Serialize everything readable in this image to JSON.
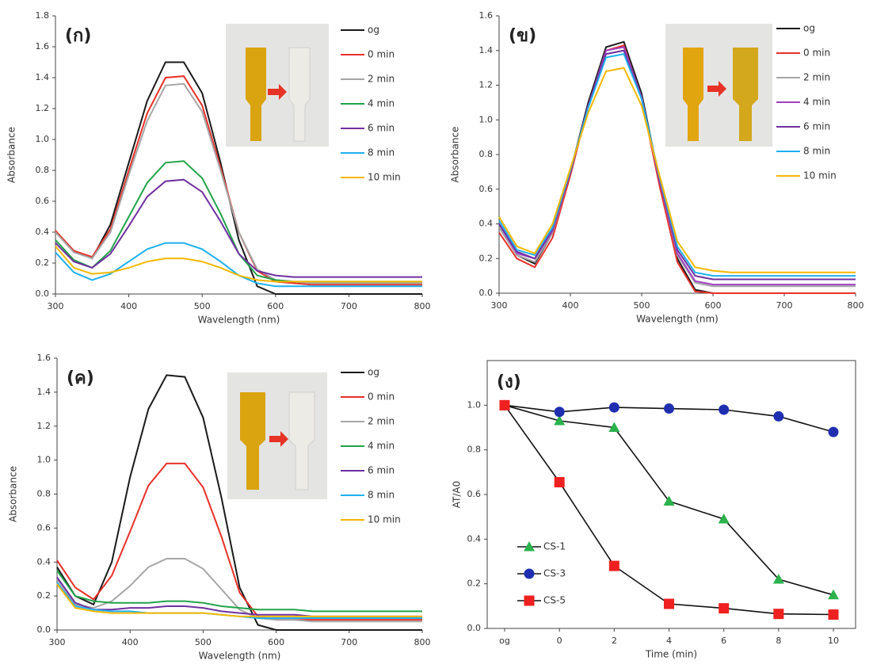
{
  "chart_data": [
    {
      "type": "line",
      "label": "(ก)",
      "x_label": "Wavelength (nm)",
      "y_label": "Absorbance",
      "x": [
        300,
        325,
        350,
        375,
        400,
        425,
        450,
        475,
        500,
        525,
        550,
        575,
        600,
        625,
        650,
        675,
        700,
        725,
        750,
        775,
        800
      ],
      "xlim": [
        300,
        800
      ],
      "xticks": [
        300,
        400,
        500,
        600,
        700,
        800
      ],
      "ylim": [
        0,
        1.8
      ],
      "yticks": [
        {
          "value": 0,
          "label": "0.0"
        },
        0.2,
        0.4,
        0.6,
        0.8,
        {
          "value": 1,
          "label": "1.0"
        },
        1.2,
        1.4,
        1.6,
        1.8
      ],
      "series": [
        {
          "name": "og",
          "color": "#1a1a1a",
          "values": [
            0.4,
            0.28,
            0.23,
            0.45,
            0.85,
            1.25,
            1.5,
            1.5,
            1.3,
            0.85,
            0.35,
            0.05,
            0,
            0,
            0,
            0,
            0,
            0,
            0,
            0,
            0
          ]
        },
        {
          "name": "0 min",
          "color": "#e8302a",
          "values": [
            0.41,
            0.28,
            0.24,
            0.42,
            0.8,
            1.17,
            1.4,
            1.41,
            1.22,
            0.82,
            0.4,
            0.15,
            0.08,
            0.07,
            0.06,
            0.06,
            0.06,
            0.06,
            0.06,
            0.06,
            0.06
          ]
        },
        {
          "name": "2 min",
          "color": "#a6a6a6",
          "values": [
            0.4,
            0.27,
            0.23,
            0.4,
            0.77,
            1.12,
            1.35,
            1.36,
            1.18,
            0.8,
            0.4,
            0.16,
            0.09,
            0.08,
            0.07,
            0.07,
            0.07,
            0.07,
            0.07,
            0.07,
            0.07
          ]
        },
        {
          "name": "4 min",
          "color": "#22a34a",
          "values": [
            0.35,
            0.22,
            0.17,
            0.28,
            0.5,
            0.72,
            0.85,
            0.86,
            0.75,
            0.52,
            0.26,
            0.12,
            0.09,
            0.08,
            0.08,
            0.08,
            0.08,
            0.08,
            0.08,
            0.08,
            0.08
          ]
        },
        {
          "name": "6 min",
          "color": "#7030a0",
          "values": [
            0.33,
            0.21,
            0.17,
            0.26,
            0.44,
            0.63,
            0.73,
            0.74,
            0.66,
            0.47,
            0.26,
            0.15,
            0.12,
            0.11,
            0.11,
            0.11,
            0.11,
            0.11,
            0.11,
            0.11,
            0.11
          ]
        },
        {
          "name": "8 min",
          "color": "#1fb0f0",
          "values": [
            0.27,
            0.14,
            0.09,
            0.13,
            0.21,
            0.29,
            0.33,
            0.33,
            0.29,
            0.21,
            0.12,
            0.07,
            0.05,
            0.05,
            0.05,
            0.05,
            0.05,
            0.05,
            0.05,
            0.05,
            0.05
          ]
        },
        {
          "name": "10 min",
          "color": "#f5b800",
          "values": [
            0.31,
            0.17,
            0.13,
            0.14,
            0.17,
            0.21,
            0.23,
            0.23,
            0.21,
            0.17,
            0.12,
            0.09,
            0.08,
            0.08,
            0.08,
            0.08,
            0.08,
            0.08,
            0.08,
            0.08,
            0.08
          ]
        }
      ]
    },
    {
      "type": "line",
      "label": "(ข)",
      "x_label": "Wavelength (nm)",
      "y_label": "Absorbance",
      "x": [
        300,
        325,
        350,
        375,
        400,
        425,
        450,
        475,
        500,
        525,
        550,
        575,
        600,
        625,
        650,
        675,
        700,
        725,
        750,
        775,
        800
      ],
      "xlim": [
        300,
        800
      ],
      "xticks": [
        300,
        400,
        500,
        600,
        700,
        800
      ],
      "ylim": [
        0,
        1.6
      ],
      "yticks": [
        {
          "value": 0,
          "label": "0.0"
        },
        0.2,
        0.4,
        0.6,
        0.8,
        {
          "value": 1,
          "label": "1.0"
        },
        1.2,
        1.4,
        1.6
      ],
      "series": [
        {
          "name": "og",
          "color": "#1a1a1a",
          "values": [
            0.38,
            0.22,
            0.17,
            0.35,
            0.7,
            1.1,
            1.42,
            1.45,
            1.15,
            0.65,
            0.2,
            0.02,
            0,
            0,
            0,
            0,
            0,
            0,
            0,
            0,
            0
          ]
        },
        {
          "name": "0 min",
          "color": "#e8302a",
          "values": [
            0.35,
            0.2,
            0.15,
            0.32,
            0.68,
            1.08,
            1.4,
            1.43,
            1.12,
            0.62,
            0.18,
            0.01,
            0,
            0,
            0,
            0,
            0,
            0,
            0,
            0,
            0
          ]
        },
        {
          "name": "2 min",
          "color": "#a6a6a6",
          "values": [
            0.38,
            0.22,
            0.18,
            0.35,
            0.7,
            1.08,
            1.38,
            1.4,
            1.12,
            0.65,
            0.22,
            0.06,
            0.04,
            0.04,
            0.04,
            0.04,
            0.04,
            0.04,
            0.04,
            0.04,
            0.04
          ]
        },
        {
          "name": "4 min",
          "color": "#a040c0",
          "values": [
            0.4,
            0.23,
            0.2,
            0.36,
            0.7,
            1.08,
            1.4,
            1.42,
            1.13,
            0.65,
            0.23,
            0.07,
            0.05,
            0.05,
            0.05,
            0.05,
            0.05,
            0.05,
            0.05,
            0.05,
            0.05
          ]
        },
        {
          "name": "6 min",
          "color": "#7030a0",
          "values": [
            0.4,
            0.24,
            0.2,
            0.37,
            0.7,
            1.08,
            1.38,
            1.4,
            1.12,
            0.66,
            0.25,
            0.1,
            0.08,
            0.08,
            0.08,
            0.08,
            0.08,
            0.08,
            0.08,
            0.08,
            0.08
          ]
        },
        {
          "name": "8 min",
          "color": "#1fb0f0",
          "values": [
            0.42,
            0.25,
            0.22,
            0.38,
            0.71,
            1.07,
            1.36,
            1.38,
            1.12,
            0.67,
            0.27,
            0.12,
            0.1,
            0.1,
            0.1,
            0.1,
            0.1,
            0.1,
            0.1,
            0.1,
            0.1
          ]
        },
        {
          "name": "10 min",
          "color": "#f5b800",
          "values": [
            0.44,
            0.27,
            0.23,
            0.4,
            0.72,
            1.04,
            1.28,
            1.3,
            1.08,
            0.68,
            0.3,
            0.15,
            0.13,
            0.12,
            0.12,
            0.12,
            0.12,
            0.12,
            0.12,
            0.12,
            0.12
          ]
        }
      ]
    },
    {
      "type": "line",
      "label": "(ค)",
      "x_label": "Wavelength (nm)",
      "y_label": "Absorbance",
      "x": [
        300,
        325,
        350,
        375,
        400,
        425,
        450,
        475,
        500,
        525,
        550,
        575,
        600,
        625,
        650,
        675,
        700,
        725,
        750,
        775,
        800
      ],
      "xlim": [
        300,
        800
      ],
      "xticks": [
        300,
        400,
        500,
        600,
        700,
        800
      ],
      "ylim": [
        0,
        1.6
      ],
      "yticks": [
        {
          "value": 0,
          "label": "0.0"
        },
        0.2,
        0.4,
        0.6,
        0.8,
        {
          "value": 1,
          "label": "1.0"
        },
        1.2,
        1.4,
        1.6
      ],
      "series": [
        {
          "name": "og",
          "color": "#1a1a1a",
          "values": [
            0.37,
            0.2,
            0.15,
            0.4,
            0.9,
            1.3,
            1.5,
            1.49,
            1.25,
            0.78,
            0.25,
            0.03,
            0,
            0,
            0,
            0,
            0,
            0,
            0,
            0,
            0
          ]
        },
        {
          "name": "0 min",
          "color": "#e8302a",
          "values": [
            0.41,
            0.25,
            0.18,
            0.32,
            0.58,
            0.85,
            0.98,
            0.98,
            0.84,
            0.55,
            0.22,
            0.08,
            0.06,
            0.06,
            0.06,
            0.06,
            0.06,
            0.06,
            0.06,
            0.06,
            0.06
          ]
        },
        {
          "name": "2 min",
          "color": "#a6a6a6",
          "values": [
            0.3,
            0.15,
            0.13,
            0.17,
            0.26,
            0.37,
            0.42,
            0.42,
            0.36,
            0.24,
            0.12,
            0.07,
            0.06,
            0.06,
            0.05,
            0.05,
            0.05,
            0.05,
            0.05,
            0.05,
            0.05
          ]
        },
        {
          "name": "4 min",
          "color": "#22a34a",
          "values": [
            0.35,
            0.2,
            0.17,
            0.16,
            0.16,
            0.16,
            0.17,
            0.17,
            0.16,
            0.14,
            0.13,
            0.12,
            0.12,
            0.12,
            0.11,
            0.11,
            0.11,
            0.11,
            0.11,
            0.11,
            0.11
          ]
        },
        {
          "name": "6 min",
          "color": "#7030a0",
          "values": [
            0.31,
            0.16,
            0.12,
            0.12,
            0.13,
            0.13,
            0.14,
            0.14,
            0.13,
            0.11,
            0.1,
            0.09,
            0.09,
            0.09,
            0.08,
            0.08,
            0.08,
            0.08,
            0.08,
            0.08,
            0.08
          ]
        },
        {
          "name": "8 min",
          "color": "#1fb0f0",
          "values": [
            0.28,
            0.14,
            0.12,
            0.11,
            0.11,
            0.1,
            0.1,
            0.1,
            0.1,
            0.09,
            0.08,
            0.07,
            0.07,
            0.07,
            0.07,
            0.07,
            0.07,
            0.07,
            0.07,
            0.07,
            0.07
          ]
        },
        {
          "name": "10 min",
          "color": "#f5b800",
          "values": [
            0.27,
            0.13,
            0.11,
            0.1,
            0.1,
            0.1,
            0.1,
            0.1,
            0.1,
            0.09,
            0.08,
            0.08,
            0.08,
            0.08,
            0.08,
            0.08,
            0.08,
            0.08,
            0.08,
            0.08,
            0.08
          ]
        }
      ]
    },
    {
      "type": "marker-line",
      "label": "(ง)",
      "x_label": "Time (min)",
      "y_label": "AT/A0",
      "categories": [
        "og",
        "0",
        "2",
        "4",
        "6",
        "8",
        "10"
      ],
      "ylim": [
        0,
        1.2
      ],
      "yticks": [
        {
          "value": 0,
          "label": "0.0"
        },
        0.2,
        0.4,
        0.6,
        0.8,
        {
          "value": 1,
          "label": "1.0"
        }
      ],
      "series": [
        {
          "name": "CS-1",
          "color": "#2bb24c",
          "marker": "triangle",
          "values": [
            1.0,
            0.93,
            0.9,
            0.57,
            0.49,
            0.22,
            0.15
          ]
        },
        {
          "name": "CS-3",
          "color": "#1f2fb0",
          "marker": "circle",
          "values": [
            1.0,
            0.97,
            0.99,
            0.985,
            0.98,
            0.95,
            0.88
          ]
        },
        {
          "name": "CS-5",
          "color": "#ee2020",
          "marker": "square",
          "values": [
            1.0,
            0.655,
            0.28,
            0.11,
            0.09,
            0.065,
            0.062
          ]
        }
      ]
    }
  ]
}
